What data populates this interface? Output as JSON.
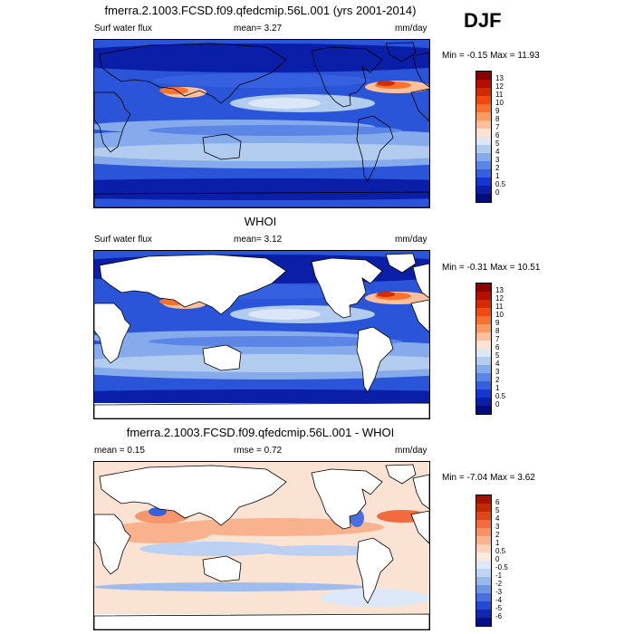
{
  "season": "DJF",
  "panels": [
    {
      "title": "fmerra.2.1003.FCSD.f09.qfedcmip.56L.001 (yrs 2001-2014)",
      "left": "Surf water flux",
      "middle": "mean=  3.27",
      "units": "mm/day",
      "stats": "Min =  -0.15 Max =  11.93",
      "style": "field",
      "ocean_only": false,
      "colorbar": {
        "labels": [
          "13",
          "12",
          "11",
          "10",
          "9",
          "8",
          "7",
          "6",
          "5",
          "4",
          "3",
          "2",
          "1",
          "0.5",
          "0"
        ],
        "colors": [
          "#8b0000",
          "#b30f00",
          "#d42a00",
          "#f04a10",
          "#f7712f",
          "#fa9a62",
          "#fcc09a",
          "#fde4d2",
          "#dbe7f6",
          "#b2ccf0",
          "#86abec",
          "#5b86e6",
          "#3560df",
          "#1536d0",
          "#0a1ea8",
          "#020c7a"
        ]
      }
    },
    {
      "title": "WHOI",
      "left": "Surf water flux",
      "middle": "mean=  3.12",
      "units": "mm/day",
      "stats": "Min =  -0.31 Max =  10.51",
      "style": "field",
      "ocean_only": true,
      "colorbar": {
        "labels": [
          "13",
          "12",
          "11",
          "10",
          "9",
          "8",
          "7",
          "6",
          "5",
          "4",
          "3",
          "2",
          "1",
          "0.5",
          "0"
        ],
        "colors": [
          "#8b0000",
          "#b30f00",
          "#d42a00",
          "#f04a10",
          "#f7712f",
          "#fa9a62",
          "#fcc09a",
          "#fde4d2",
          "#dbe7f6",
          "#b2ccf0",
          "#86abec",
          "#5b86e6",
          "#3560df",
          "#1536d0",
          "#0a1ea8",
          "#020c7a"
        ]
      }
    },
    {
      "title": "fmerra.2.1003.FCSD.f09.qfedcmip.56L.001 - WHOI",
      "left": "mean =   0.15",
      "middle": "rmse =   0.72",
      "units": "mm/day",
      "stats": "Min =  -7.04 Max =   3.62",
      "style": "diff",
      "ocean_only": true,
      "colorbar": {
        "labels": [
          "6",
          "5",
          "4",
          "3",
          "2",
          "1",
          "0.5",
          "0",
          "-0.5",
          "-1",
          "-2",
          "-3",
          "-4",
          "-5",
          "-6"
        ],
        "colors": [
          "#a51000",
          "#c62a05",
          "#e0461c",
          "#f26b3f",
          "#f79166",
          "#fab391",
          "#fcd2ba",
          "#fde9dd",
          "#dde8f7",
          "#bfd3f2",
          "#98b8ee",
          "#6e96e8",
          "#4870e0",
          "#2448d2",
          "#0f28b0",
          "#041088"
        ]
      }
    }
  ]
}
